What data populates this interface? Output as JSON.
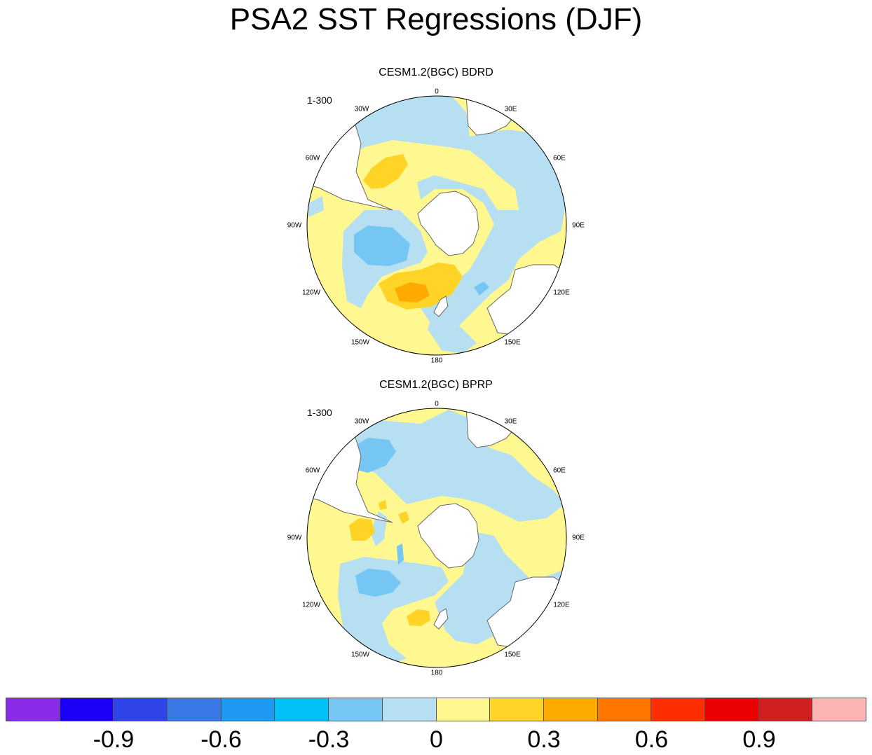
{
  "title": "PSA2 SST Regressions (DJF)",
  "colors": {
    "land": "#ffffff",
    "coast": "#666666",
    "levels": [
      "#8a2be8",
      "#1c00f5",
      "#2e44e6",
      "#3a78e6",
      "#1e9af5",
      "#00c0f8",
      "#75c6f2",
      "#b6dff2",
      "#fff78f",
      "#ffd427",
      "#ffaa00",
      "#ff7700",
      "#ff2e00",
      "#eb0000",
      "#d11e1e",
      "#ffb4b4"
    ]
  },
  "longitude_labels": [
    "0",
    "30E",
    "60E",
    "90E",
    "120E",
    "150E",
    "180",
    "150W",
    "120W",
    "90W",
    "60W",
    "30W"
  ],
  "panels": [
    {
      "title": "CESM1.2(BGC) BDRD",
      "subtitle": "1-300"
    },
    {
      "title": "CESM1.2(BGC) BPRP",
      "subtitle": "1-300"
    }
  ],
  "colorbar": {
    "label_values": [
      "-0.9",
      "-0.6",
      "-0.3",
      "0",
      "0.3",
      "0.6",
      "0.9"
    ]
  }
}
